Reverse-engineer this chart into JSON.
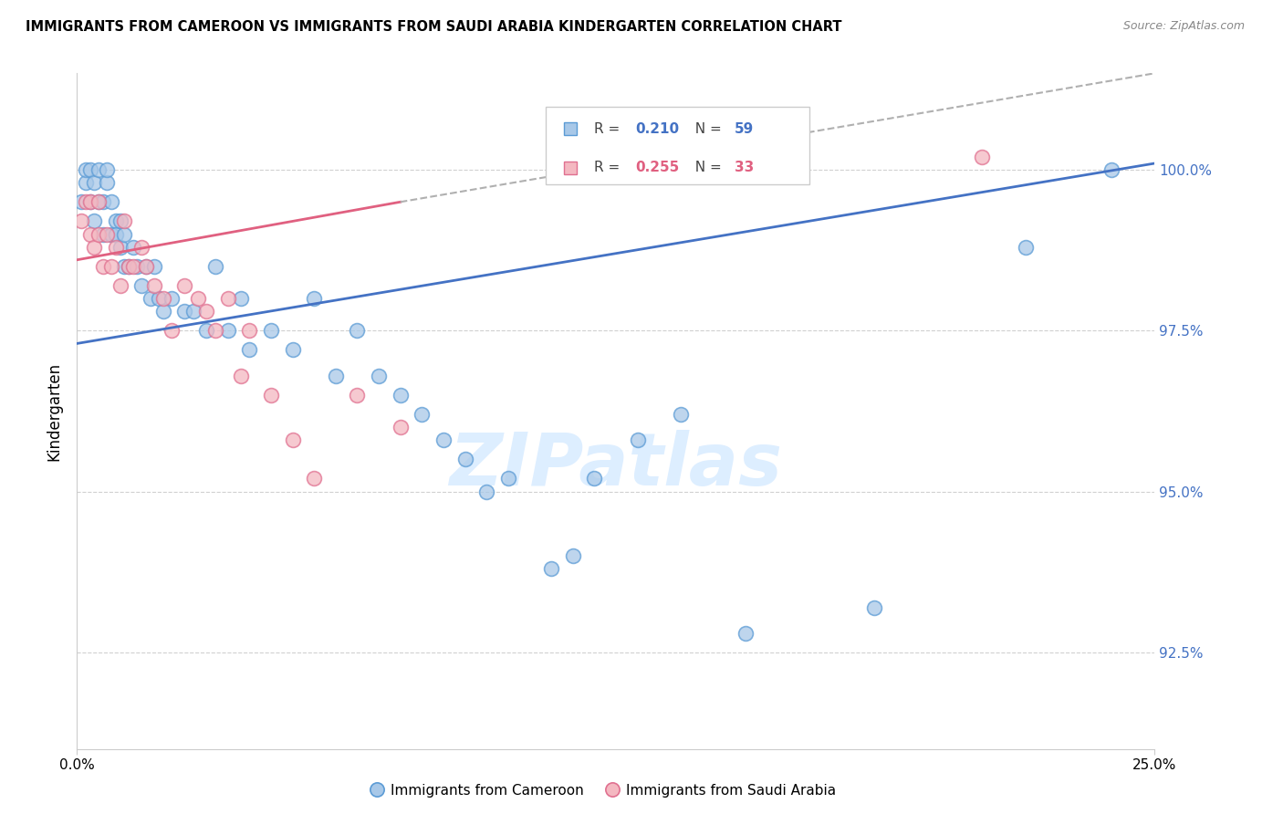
{
  "title": "IMMIGRANTS FROM CAMEROON VS IMMIGRANTS FROM SAUDI ARABIA KINDERGARTEN CORRELATION CHART",
  "source": "Source: ZipAtlas.com",
  "ylabel": "Kindergarten",
  "xlim": [
    0.0,
    0.25
  ],
  "ylim": [
    91.0,
    101.5
  ],
  "color_cameroon_fill": "#a8c8e8",
  "color_cameroon_edge": "#5b9bd5",
  "color_saudi_fill": "#f4b8c1",
  "color_saudi_edge": "#e07090",
  "color_trend_cameroon": "#4472c4",
  "color_trend_saudi": "#e06080",
  "color_dashed": "#b0b0b0",
  "color_right_axis": "#4472c4",
  "color_grid": "#d0d0d0",
  "watermark_color": "#ddeeff",
  "cameroon_x": [
    0.001,
    0.002,
    0.002,
    0.003,
    0.003,
    0.004,
    0.004,
    0.005,
    0.005,
    0.006,
    0.006,
    0.007,
    0.007,
    0.008,
    0.008,
    0.009,
    0.009,
    0.01,
    0.01,
    0.011,
    0.011,
    0.012,
    0.013,
    0.014,
    0.015,
    0.016,
    0.017,
    0.018,
    0.019,
    0.02,
    0.022,
    0.025,
    0.027,
    0.03,
    0.032,
    0.035,
    0.038,
    0.04,
    0.045,
    0.05,
    0.055,
    0.06,
    0.065,
    0.07,
    0.075,
    0.08,
    0.085,
    0.09,
    0.095,
    0.1,
    0.11,
    0.115,
    0.12,
    0.13,
    0.14,
    0.155,
    0.185,
    0.22,
    0.24
  ],
  "cameroon_y": [
    99.5,
    99.8,
    100.0,
    99.5,
    100.0,
    99.2,
    99.8,
    99.5,
    100.0,
    99.0,
    99.5,
    99.8,
    100.0,
    99.0,
    99.5,
    99.2,
    99.0,
    98.8,
    99.2,
    98.5,
    99.0,
    98.5,
    98.8,
    98.5,
    98.2,
    98.5,
    98.0,
    98.5,
    98.0,
    97.8,
    98.0,
    97.8,
    97.8,
    97.5,
    98.5,
    97.5,
    98.0,
    97.2,
    97.5,
    97.2,
    98.0,
    96.8,
    97.5,
    96.8,
    96.5,
    96.2,
    95.8,
    95.5,
    95.0,
    95.2,
    93.8,
    94.0,
    95.2,
    95.8,
    96.2,
    92.8,
    93.2,
    98.8,
    100.0
  ],
  "saudi_x": [
    0.001,
    0.002,
    0.003,
    0.003,
    0.004,
    0.005,
    0.005,
    0.006,
    0.007,
    0.008,
    0.009,
    0.01,
    0.011,
    0.012,
    0.013,
    0.015,
    0.016,
    0.018,
    0.02,
    0.022,
    0.025,
    0.028,
    0.03,
    0.032,
    0.035,
    0.038,
    0.04,
    0.045,
    0.05,
    0.055,
    0.065,
    0.075,
    0.21
  ],
  "saudi_y": [
    99.2,
    99.5,
    99.0,
    99.5,
    98.8,
    99.0,
    99.5,
    98.5,
    99.0,
    98.5,
    98.8,
    98.2,
    99.2,
    98.5,
    98.5,
    98.8,
    98.5,
    98.2,
    98.0,
    97.5,
    98.2,
    98.0,
    97.8,
    97.5,
    98.0,
    96.8,
    97.5,
    96.5,
    95.8,
    95.2,
    96.5,
    96.0,
    100.2
  ],
  "trend_cam_x0": 0.0,
  "trend_cam_x1": 0.25,
  "trend_cam_y0": 97.3,
  "trend_cam_y1": 100.1,
  "trend_saudi_x0": 0.0,
  "trend_saudi_x1": 0.075,
  "trend_saudi_y0": 98.6,
  "trend_saudi_y1": 99.5,
  "trend_dash_x0": 0.075,
  "trend_dash_x1": 0.25,
  "trend_dash_y0": 99.5,
  "trend_dash_y1": 101.5
}
